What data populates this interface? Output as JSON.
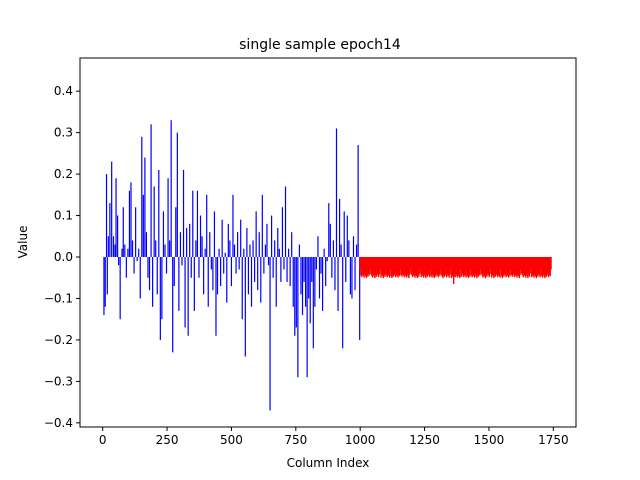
{
  "chart_data": {
    "type": "bar",
    "title": "single sample epoch14",
    "xlabel": "Column Index",
    "ylabel": "Value",
    "xlim": [
      -88,
      1838
    ],
    "ylim": [
      -0.41,
      0.48
    ],
    "xticks": [
      0,
      250,
      500,
      750,
      1000,
      1250,
      1500,
      1750
    ],
    "yticks": [
      -0.4,
      -0.3,
      -0.2,
      -0.1,
      0.0,
      0.1,
      0.2,
      0.3,
      0.4
    ],
    "grid": false,
    "legend": "none",
    "series": [
      {
        "color": "#0000ff",
        "x_range": [
          0,
          999
        ],
        "description_values": [
          [
            5,
            -0.14
          ],
          [
            10,
            -0.12
          ],
          [
            15,
            0.2
          ],
          [
            18,
            -0.09
          ],
          [
            22,
            0.05
          ],
          [
            28,
            0.13
          ],
          [
            35,
            0.23
          ],
          [
            42,
            0.05
          ],
          [
            48,
            0.03
          ],
          [
            52,
            0.19
          ],
          [
            58,
            0.1
          ],
          [
            62,
            -0.02
          ],
          [
            68,
            -0.15
          ],
          [
            75,
            0.02
          ],
          [
            80,
            0.12
          ],
          [
            86,
            0.03
          ],
          [
            92,
            -0.05
          ],
          [
            98,
            0.02
          ],
          [
            104,
            0.16
          ],
          [
            110,
            0.18
          ],
          [
            116,
            0.04
          ],
          [
            122,
            -0.04
          ],
          [
            128,
            0.12
          ],
          [
            134,
            -0.01
          ],
          [
            140,
            0.02
          ],
          [
            146,
            -0.1
          ],
          [
            152,
            0.29
          ],
          [
            158,
            0.15
          ],
          [
            164,
            0.24
          ],
          [
            170,
            0.06
          ],
          [
            176,
            -0.05
          ],
          [
            182,
            -0.08
          ],
          [
            188,
            0.32
          ],
          [
            194,
            -0.12
          ],
          [
            200,
            0.17
          ],
          [
            206,
            0.04
          ],
          [
            212,
            -0.09
          ],
          [
            218,
            0.21
          ],
          [
            224,
            -0.2
          ],
          [
            230,
            -0.15
          ],
          [
            236,
            0.11
          ],
          [
            242,
            0.03
          ],
          [
            248,
            -0.04
          ],
          [
            254,
            0.19
          ],
          [
            260,
            0.04
          ],
          [
            266,
            0.33
          ],
          [
            272,
            -0.23
          ],
          [
            278,
            -0.07
          ],
          [
            284,
            0.12
          ],
          [
            290,
            0.3
          ],
          [
            296,
            -0.13
          ],
          [
            302,
            0.06
          ],
          [
            308,
            -0.02
          ],
          [
            314,
            0.21
          ],
          [
            320,
            -0.17
          ],
          [
            326,
            0.07
          ],
          [
            332,
            -0.19
          ],
          [
            338,
            0.08
          ],
          [
            344,
            -0.05
          ],
          [
            350,
            0.16
          ],
          [
            356,
            -0.13
          ],
          [
            362,
            0.04
          ],
          [
            368,
            0.16
          ],
          [
            374,
            -0.05
          ],
          [
            380,
            0.1
          ],
          [
            386,
            0.05
          ],
          [
            392,
            -0.09
          ],
          [
            398,
            0.02
          ],
          [
            404,
            0.15
          ],
          [
            410,
            -0.12
          ],
          [
            416,
            0.06
          ],
          [
            422,
            -0.03
          ],
          [
            428,
            -0.08
          ],
          [
            434,
            0.11
          ],
          [
            440,
            -0.19
          ],
          [
            446,
            -0.09
          ],
          [
            452,
            0.02
          ],
          [
            458,
            -0.07
          ],
          [
            464,
            0.09
          ],
          [
            470,
            -0.04
          ],
          [
            476,
            0.01
          ],
          [
            482,
            -0.11
          ],
          [
            488,
            0.08
          ],
          [
            494,
            0.04
          ],
          [
            500,
            -0.07
          ],
          [
            506,
            0.15
          ],
          [
            512,
            0.03
          ],
          [
            518,
            -0.04
          ],
          [
            524,
            0.06
          ],
          [
            530,
            -0.03
          ],
          [
            536,
            0.09
          ],
          [
            542,
            -0.15
          ],
          [
            548,
            0.02
          ],
          [
            554,
            -0.24
          ],
          [
            560,
            0.07
          ],
          [
            566,
            -0.09
          ],
          [
            572,
            0.03
          ],
          [
            578,
            -0.12
          ],
          [
            584,
            0.04
          ],
          [
            590,
            -0.06
          ],
          [
            596,
            0.11
          ],
          [
            602,
            -0.08
          ],
          [
            608,
            0.06
          ],
          [
            614,
            -0.11
          ],
          [
            620,
            0.15
          ],
          [
            626,
            -0.04
          ],
          [
            632,
            0.03
          ],
          [
            638,
            0.08
          ],
          [
            644,
            -0.02
          ],
          [
            650,
            -0.37
          ],
          [
            656,
            0.1
          ],
          [
            662,
            -0.05
          ],
          [
            668,
            0.04
          ],
          [
            674,
            -0.12
          ],
          [
            680,
            0.07
          ],
          [
            686,
            0.02
          ],
          [
            692,
            -0.06
          ],
          [
            698,
            0.12
          ],
          [
            704,
            -0.03
          ],
          [
            710,
            0.17
          ],
          [
            716,
            -0.06
          ],
          [
            722,
            0.02
          ],
          [
            728,
            -0.07
          ],
          [
            734,
            0.06
          ],
          [
            740,
            -0.12
          ],
          [
            746,
            -0.19
          ],
          [
            752,
            -0.17
          ],
          [
            758,
            -0.29
          ],
          [
            764,
            0.03
          ],
          [
            770,
            -0.09
          ],
          [
            776,
            -0.14
          ],
          [
            782,
            -0.06
          ],
          [
            788,
            -0.12
          ],
          [
            794,
            -0.29
          ],
          [
            800,
            -0.1
          ],
          [
            806,
            -0.16
          ],
          [
            812,
            -0.06
          ],
          [
            818,
            -0.22
          ],
          [
            824,
            -0.12
          ],
          [
            830,
            -0.03
          ],
          [
            836,
            0.05
          ],
          [
            842,
            -0.1
          ],
          [
            848,
            -0.04
          ],
          [
            854,
            -0.13
          ],
          [
            860,
            0.02
          ],
          [
            866,
            -0.07
          ],
          [
            872,
            -0.01
          ],
          [
            878,
            0.13
          ],
          [
            884,
            0.08
          ],
          [
            890,
            -0.05
          ],
          [
            896,
            0.04
          ],
          [
            902,
            -0.08
          ],
          [
            908,
            0.31
          ],
          [
            914,
            -0.13
          ],
          [
            920,
            0.14
          ],
          [
            926,
            0.03
          ],
          [
            932,
            -0.22
          ],
          [
            938,
            0.11
          ],
          [
            944,
            -0.06
          ],
          [
            950,
            0.1
          ],
          [
            956,
            0.04
          ],
          [
            962,
            -0.09
          ],
          [
            968,
            -0.1
          ],
          [
            974,
            0.05
          ],
          [
            980,
            -0.08
          ],
          [
            986,
            0.03
          ],
          [
            992,
            0.27
          ],
          [
            998,
            -0.2
          ]
        ]
      },
      {
        "color": "#ff0000",
        "x_range": [
          1000,
          1743
        ],
        "baseline_value": -0.04,
        "min_value": -0.065
      }
    ]
  }
}
